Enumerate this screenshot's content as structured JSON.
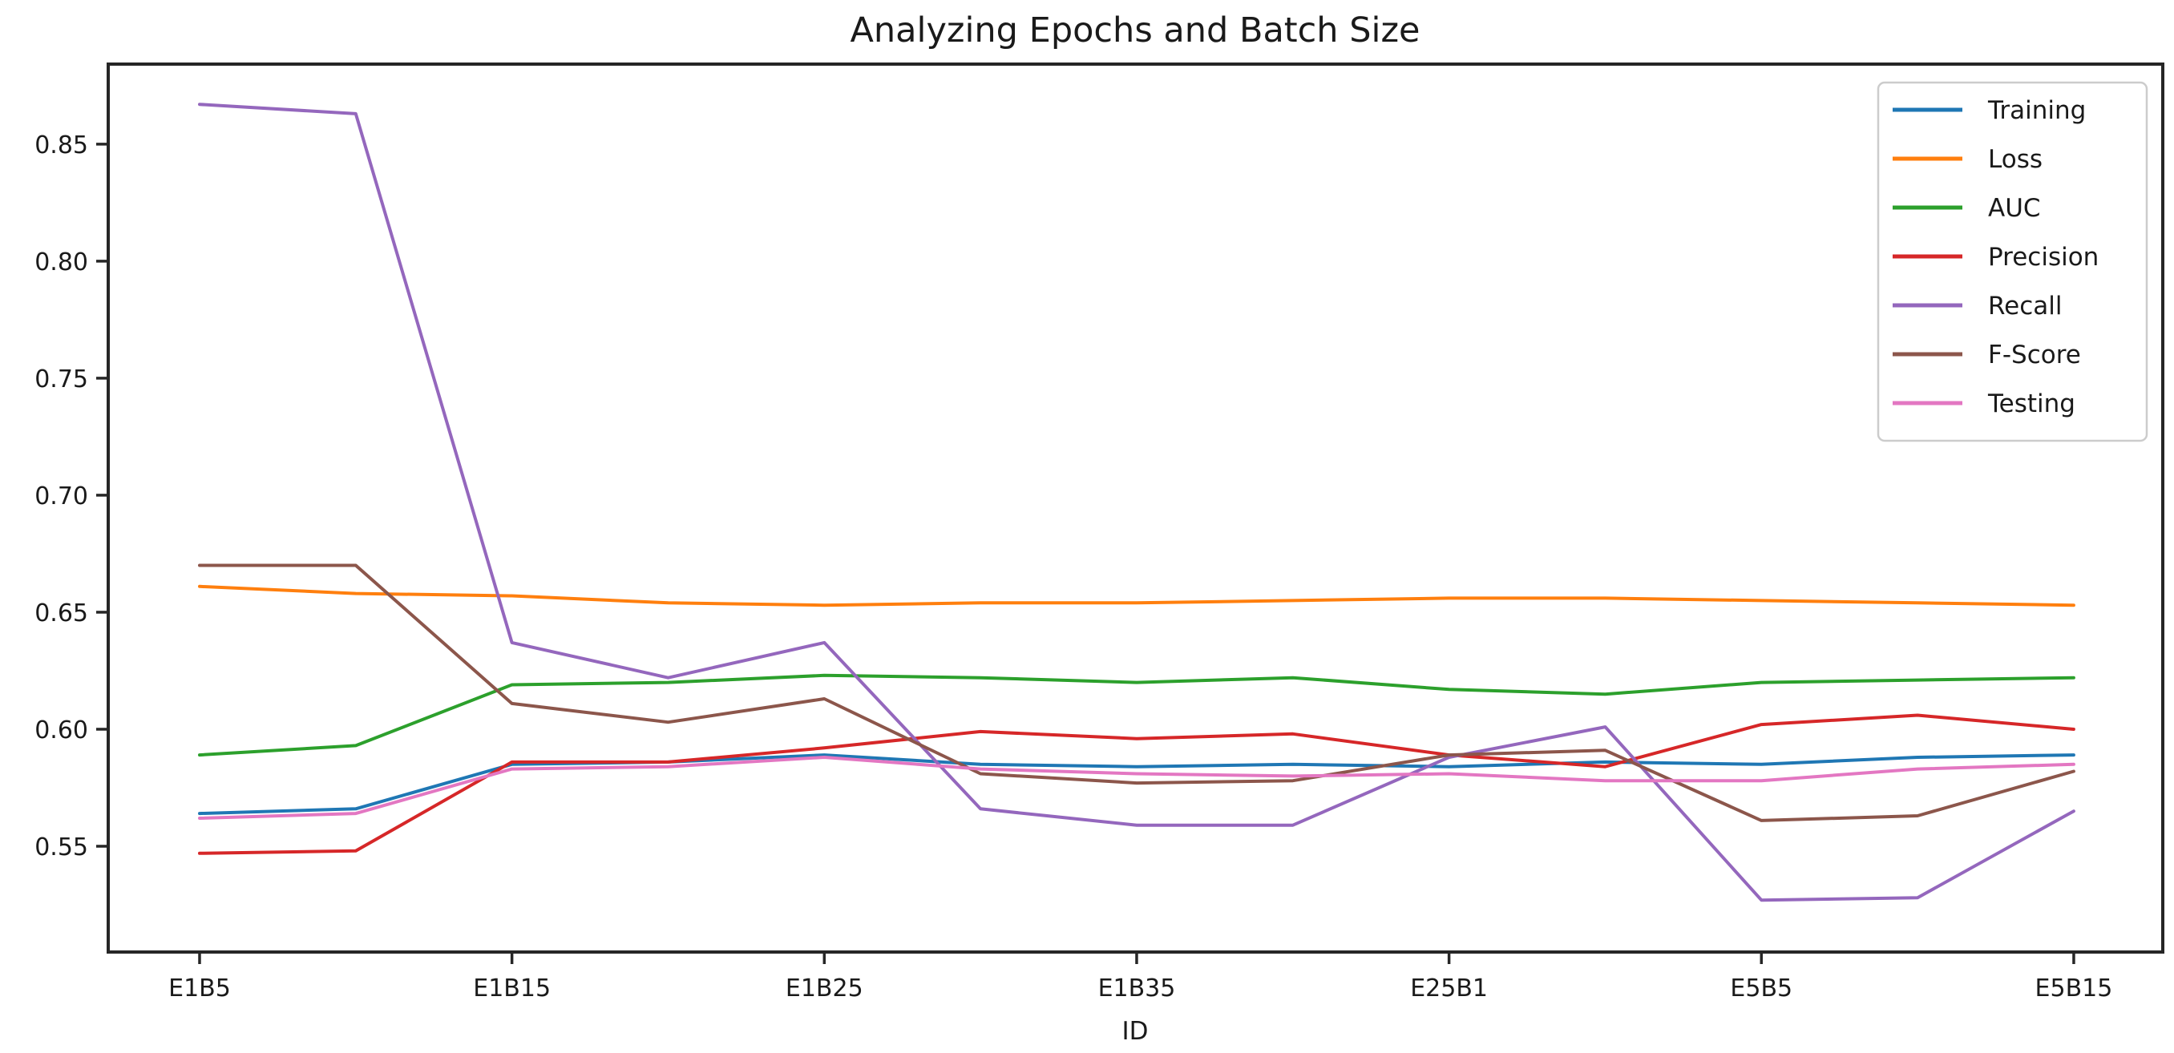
{
  "chart_data": {
    "type": "line",
    "title": "Analyzing Epochs and Batch Size",
    "xlabel": "ID",
    "ylabel": "",
    "grid": false,
    "legend_position": "upper right",
    "n_points": 13,
    "x_tick_indices": [
      0,
      2,
      4,
      6,
      8,
      10,
      12
    ],
    "x_tick_labels": [
      "E1B5",
      "E1B15",
      "E1B25",
      "E1B35",
      "E25B1",
      "E5B5",
      "E5B15"
    ],
    "yticks": [
      0.55,
      0.6,
      0.65,
      0.7,
      0.75,
      0.8,
      0.85
    ],
    "ytick_labels": [
      "0.55",
      "0.60",
      "0.65",
      "0.70",
      "0.75",
      "0.80",
      "0.85"
    ],
    "xlim": [
      -0.585,
      12.57
    ],
    "ylim": [
      0.5048,
      0.8842
    ],
    "series": [
      {
        "name": "Training",
        "color": "#1f77b4",
        "values": [
          0.564,
          0.566,
          0.585,
          0.586,
          0.589,
          0.585,
          0.584,
          0.585,
          0.584,
          0.586,
          0.585,
          0.588,
          0.589
        ]
      },
      {
        "name": "Loss",
        "color": "#ff7f0e",
        "values": [
          0.661,
          0.658,
          0.657,
          0.654,
          0.653,
          0.654,
          0.654,
          0.655,
          0.656,
          0.656,
          0.655,
          0.654,
          0.653
        ]
      },
      {
        "name": "AUC",
        "color": "#2ca02c",
        "values": [
          0.589,
          0.593,
          0.619,
          0.62,
          0.623,
          0.622,
          0.62,
          0.622,
          0.617,
          0.615,
          0.62,
          0.621,
          0.622
        ]
      },
      {
        "name": "Precision",
        "color": "#d62728",
        "values": [
          0.547,
          0.548,
          0.586,
          0.586,
          0.592,
          0.599,
          0.596,
          0.598,
          0.589,
          0.584,
          0.602,
          0.606,
          0.6
        ]
      },
      {
        "name": "Recall",
        "color": "#9467bd",
        "values": [
          0.867,
          0.863,
          0.637,
          0.622,
          0.637,
          0.566,
          0.559,
          0.559,
          0.588,
          0.601,
          0.527,
          0.528,
          0.565
        ]
      },
      {
        "name": "F-Score",
        "color": "#8c564b",
        "values": [
          0.67,
          0.67,
          0.611,
          0.603,
          0.613,
          0.581,
          0.577,
          0.578,
          0.589,
          0.591,
          0.561,
          0.563,
          0.582
        ]
      },
      {
        "name": "Testing",
        "color": "#e377c2",
        "values": [
          0.562,
          0.564,
          0.583,
          0.584,
          0.588,
          0.583,
          0.581,
          0.58,
          0.581,
          0.578,
          0.578,
          0.583,
          0.585
        ]
      }
    ]
  },
  "colors": {
    "background": "#ffffff",
    "spine": "#262626",
    "text": "#1a1a1a",
    "legend_border": "#cccccc"
  }
}
